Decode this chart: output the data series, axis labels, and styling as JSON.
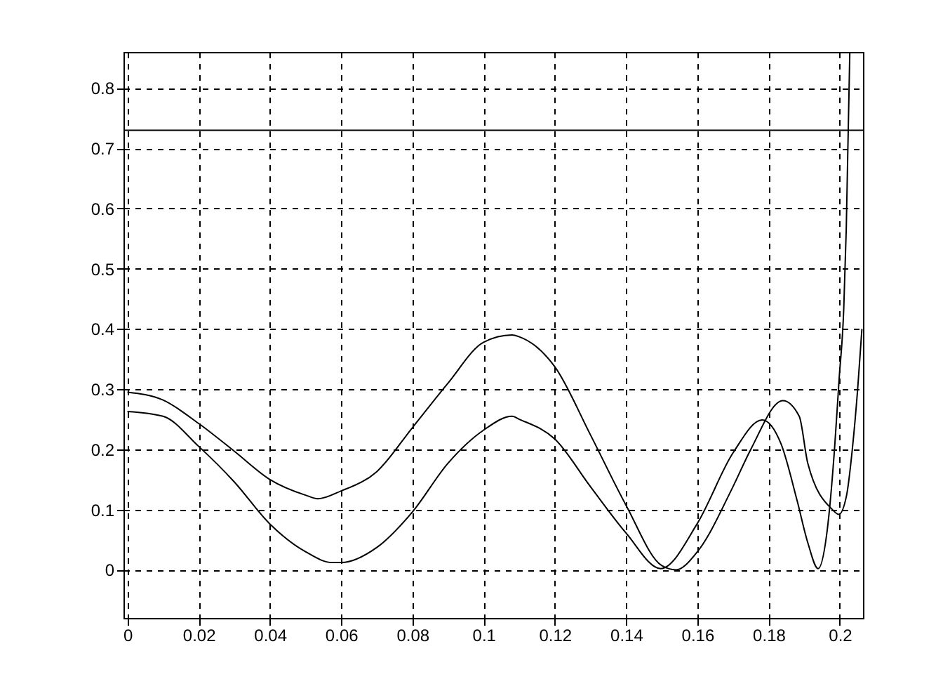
{
  "chart_data": {
    "type": "line",
    "xlim": [
      -0.0011,
      0.2065
    ],
    "ylim": [
      -0.08,
      0.86
    ],
    "xticks": [
      0,
      0.02,
      0.04,
      0.06,
      0.08,
      0.1,
      0.12,
      0.14,
      0.16,
      0.18,
      0.2
    ],
    "yticks": [
      0,
      0.1,
      0.2,
      0.3,
      0.4,
      0.5,
      0.6,
      0.7,
      0.8
    ],
    "grid": true,
    "line_style": "solid",
    "ref_lines": [
      {
        "axis": "y",
        "value": 0.73,
        "color": "#000000",
        "line_style": "solid"
      }
    ],
    "series": [
      {
        "color": "#000000",
        "x": [
          0,
          0.01,
          0.02,
          0.03,
          0.04,
          0.05,
          0.0535,
          0.06,
          0.07,
          0.08,
          0.09,
          0.1,
          0.108,
          0.11,
          0.12,
          0.13,
          0.14,
          0.15,
          0.154,
          0.16,
          0.17,
          0.175,
          0.184,
          0.1886,
          0.191,
          0.1979,
          0.1997,
          0.2019,
          0.2035,
          0.205,
          0.2062
        ],
        "values": [
          0.295,
          0.282,
          0.243,
          0.197,
          0.15,
          0.124,
          0.118,
          0.131,
          0.163,
          0.236,
          0.31,
          0.378,
          0.39,
          0.387,
          0.337,
          0.224,
          0.107,
          0.007,
          0.0,
          0.03,
          0.138,
          0.2,
          0.281,
          0.255,
          0.177,
          0.1,
          0.092,
          0.124,
          0.2,
          0.3,
          0.4
        ]
      },
      {
        "color": "#000000",
        "x": [
          0,
          0.01,
          0.02,
          0.03,
          0.04,
          0.05,
          0.0575,
          0.06,
          0.07,
          0.08,
          0.09,
          0.1,
          0.108,
          0.11,
          0.12,
          0.13,
          0.14,
          0.1497,
          0.16,
          0.17,
          0.1782,
          0.1835,
          0.188,
          0.191,
          0.1939,
          0.1965,
          0.1985,
          0.1998,
          0.2011,
          0.2018,
          0.2028
        ],
        "values": [
          0.263,
          0.255,
          0.205,
          0.146,
          0.076,
          0.03,
          0.012,
          0.012,
          0.037,
          0.096,
          0.177,
          0.232,
          0.255,
          0.25,
          0.217,
          0.138,
          0.061,
          0.002,
          0.077,
          0.194,
          0.249,
          0.209,
          0.115,
          0.045,
          0.002,
          0.068,
          0.2,
          0.317,
          0.434,
          0.566,
          0.86
        ]
      }
    ]
  }
}
